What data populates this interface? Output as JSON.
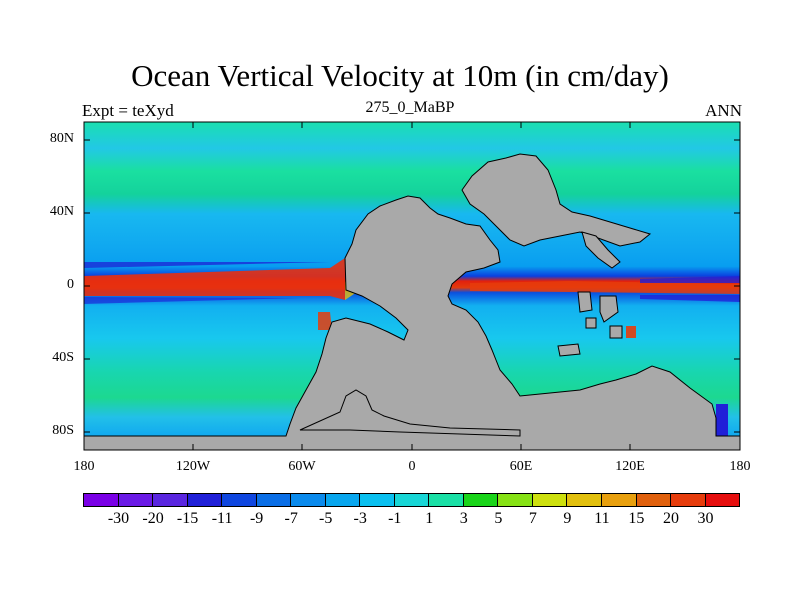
{
  "title": "Ocean Vertical Velocity at 10m (in cm/day)",
  "subtitle_left": "Expt = teXyd",
  "subtitle_center": "275_0_MaBP",
  "subtitle_right": "ANN",
  "lat_labels": [
    "80N",
    "40N",
    "0",
    "40S",
    "80S"
  ],
  "lon_labels": [
    "180",
    "120W",
    "60W",
    "0",
    "60E",
    "120E",
    "180"
  ],
  "colorbar": {
    "labels": [
      "-30",
      "-20",
      "-15",
      "-11",
      "-9",
      "-7",
      "-5",
      "-3",
      "-1",
      "1",
      "3",
      "5",
      "7",
      "9",
      "11",
      "15",
      "20",
      "30"
    ],
    "colors": [
      "#7a00e6",
      "#6a1ae6",
      "#5a26e0",
      "#2020d8",
      "#0f46e0",
      "#0a6ee6",
      "#0a8aec",
      "#08a6ee",
      "#0ac0f0",
      "#18d6d6",
      "#1ae0a6",
      "#19d419",
      "#86e214",
      "#cde00e",
      "#e2c00e",
      "#e8a00e",
      "#e0600c",
      "#e63c0c",
      "#e60e0e"
    ]
  },
  "colors": {
    "land": "#a9a9a9",
    "ocean_background": "#1fe0c2",
    "coastline": "#000000"
  }
}
